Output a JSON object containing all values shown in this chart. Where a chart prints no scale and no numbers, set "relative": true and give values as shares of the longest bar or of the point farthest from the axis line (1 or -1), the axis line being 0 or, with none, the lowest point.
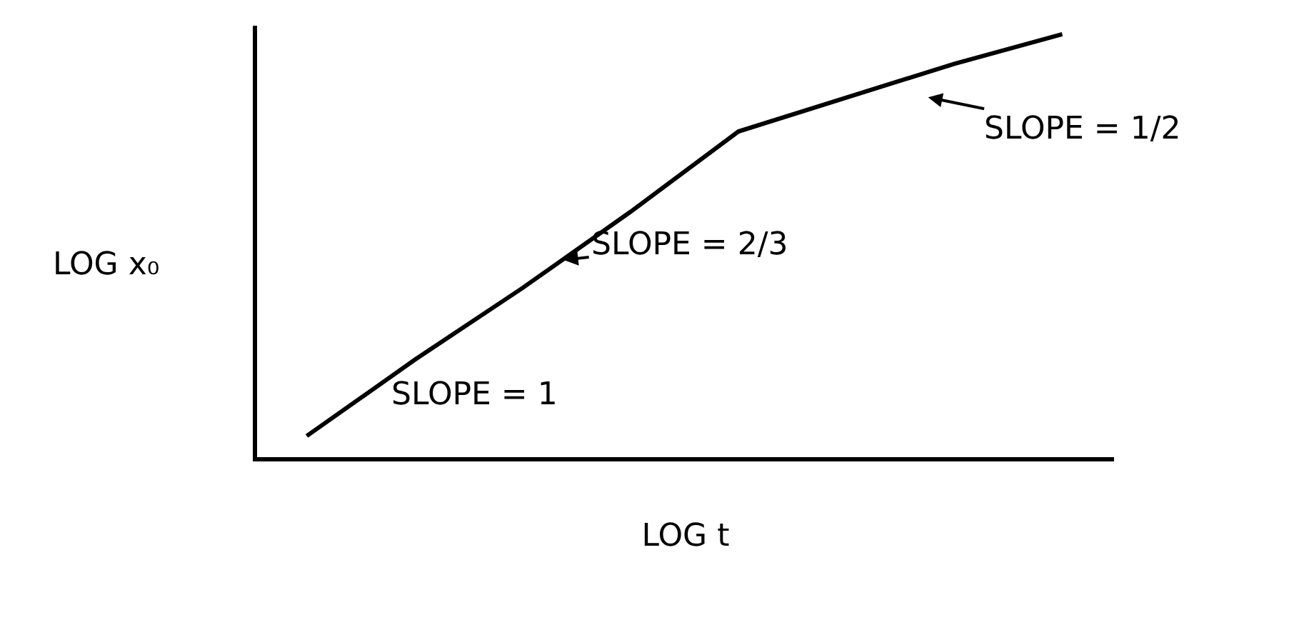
{
  "chart_data": {
    "type": "line",
    "xlabel": "LOG t",
    "ylabel": "LOG x₀",
    "relative": true,
    "color": "#000000",
    "categories": [
      null,
      null,
      null,
      null,
      null,
      null,
      null,
      null
    ],
    "values": [
      0.05,
      0.23,
      0.4,
      0.58,
      0.77,
      0.85,
      0.93,
      1
    ],
    "annotations": [
      "SLOPE = 1",
      "SLOPE = 2/3",
      "SLOPE = 1/2"
    ]
  }
}
